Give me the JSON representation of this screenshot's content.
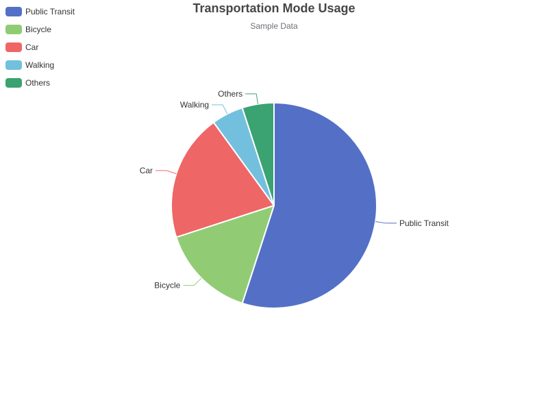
{
  "chart_data": {
    "type": "pie",
    "title": "Transportation Mode Usage",
    "subtitle": "Sample Data",
    "legend_position": "top-left",
    "slices": [
      {
        "label": "Public Transit",
        "value": 55,
        "color": "#5470c6"
      },
      {
        "label": "Bicycle",
        "value": 15,
        "color": "#91cc75"
      },
      {
        "label": "Car",
        "value": 20,
        "color": "#ee6666"
      },
      {
        "label": "Walking",
        "value": 5,
        "color": "#73c0de"
      },
      {
        "label": "Others",
        "value": 5,
        "color": "#3ba272"
      }
    ]
  }
}
